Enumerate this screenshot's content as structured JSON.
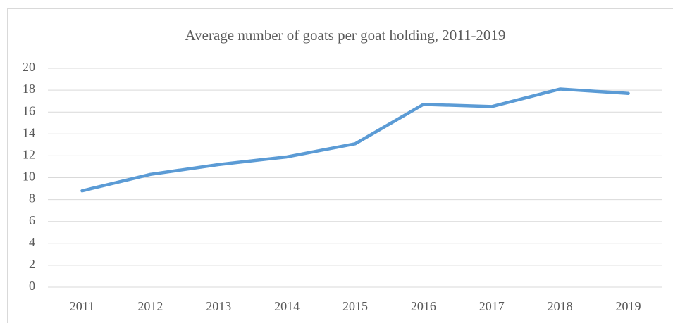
{
  "chart_data": {
    "type": "line",
    "title": "Average number of goats per goat holding, 2011-2019",
    "categories": [
      "2011",
      "2012",
      "2013",
      "2014",
      "2015",
      "2016",
      "2017",
      "2018",
      "2019"
    ],
    "series": [
      {
        "name": "Average number of goats",
        "color": "#5b9bd5",
        "values": [
          8.8,
          10.3,
          11.2,
          11.9,
          13.1,
          16.7,
          16.5,
          18.1,
          17.7
        ]
      }
    ],
    "ylim": [
      0,
      20
    ],
    "yticks": [
      0,
      2,
      4,
      6,
      8,
      10,
      12,
      14,
      16,
      18,
      20
    ],
    "grid": true
  }
}
